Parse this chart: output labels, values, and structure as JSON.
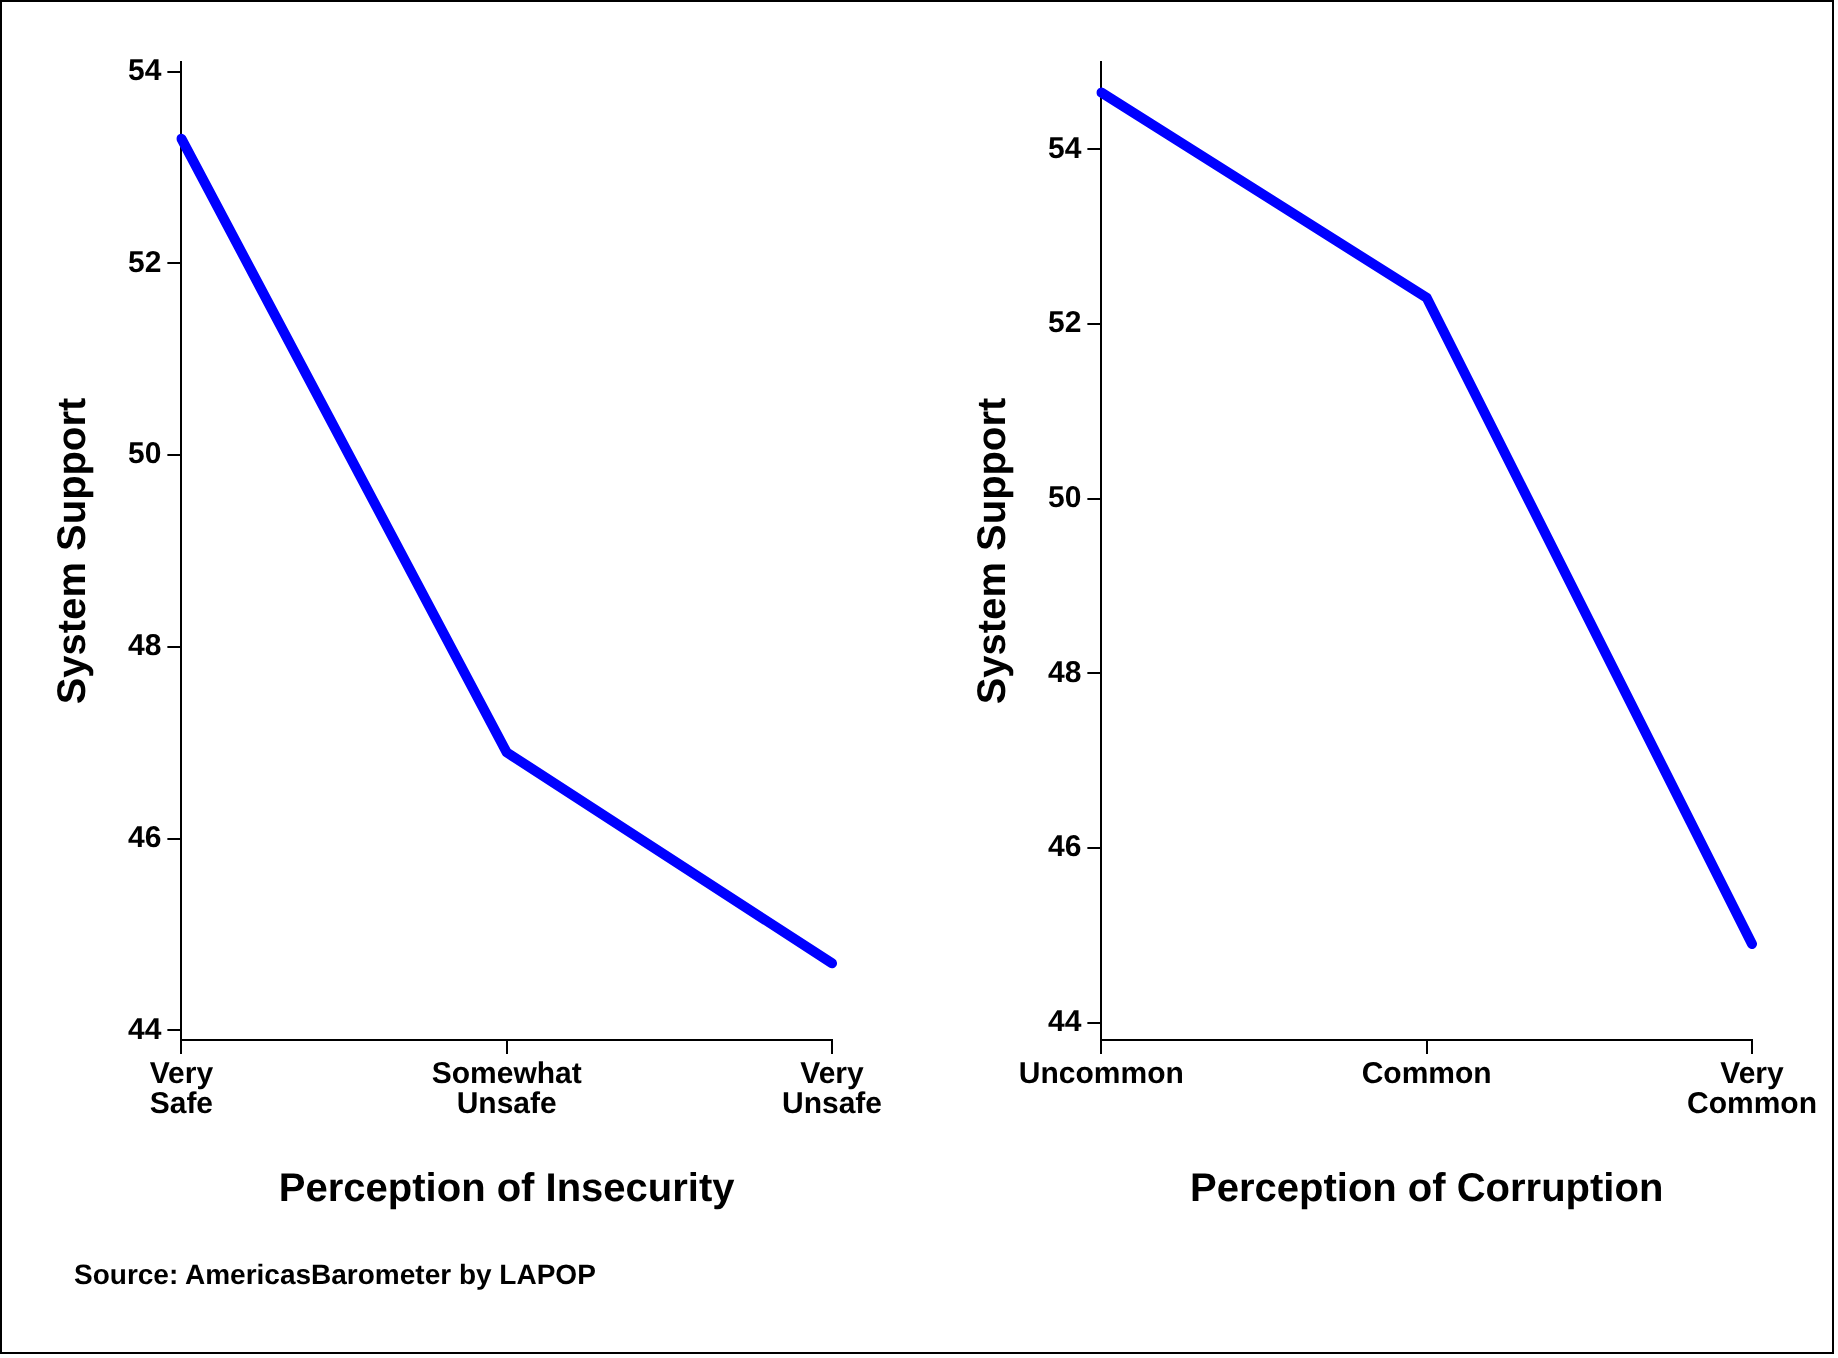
{
  "chart_data": [
    {
      "type": "line",
      "xlabel": "Perception of Insecurity",
      "ylabel": "System Support",
      "categories": [
        "Very Safe",
        "Somewhat Unsafe",
        "Very Unsafe"
      ],
      "series": [
        {
          "color": "#0000ff",
          "values": [
            53.3,
            46.9,
            44.7
          ]
        }
      ],
      "ylim": [
        43.9,
        54.1
      ],
      "yticks": [
        44,
        46,
        48,
        50,
        52,
        54
      ],
      "grid": false,
      "legend": false,
      "marker": "none",
      "annotations": [
        "Source: AmericasBarometer by  LAPOP"
      ]
    },
    {
      "type": "line",
      "xlabel": "Perception of Corruption",
      "ylabel": "System Support",
      "categories": [
        "Uncommon",
        "Common",
        "Very Common"
      ],
      "series": [
        {
          "color": "#0000ff",
          "values": [
            54.65,
            52.3,
            44.9
          ]
        }
      ],
      "ylim": [
        43.8,
        55
      ],
      "yticks": [
        44,
        46,
        48,
        50,
        52,
        54
      ],
      "grid": false,
      "legend": false,
      "marker": "none"
    }
  ]
}
